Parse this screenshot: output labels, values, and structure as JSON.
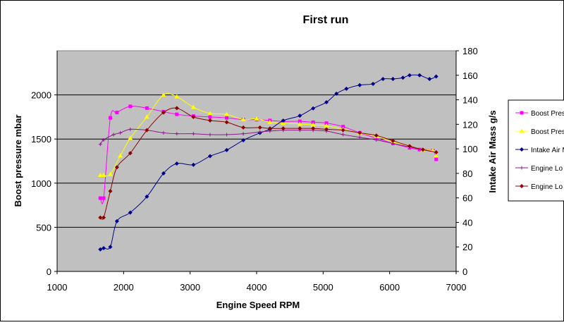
{
  "chart_data": {
    "type": "line",
    "title": "First run",
    "xlabel": "Engine Speed RPM",
    "ylabel": "Boost pressure mbar",
    "y2label": "Intake Air Mass g/s",
    "xlim": [
      1000,
      7000
    ],
    "ylim": [
      0,
      2500
    ],
    "y2lim": [
      0,
      180
    ],
    "x_ticks": [
      "1000",
      "2000",
      "3000",
      "4000",
      "5000",
      "6000",
      "7000"
    ],
    "y_ticks": [
      "0",
      "500",
      "1000",
      "1500",
      "2000"
    ],
    "y2_ticks": [
      "0",
      "20",
      "40",
      "60",
      "80",
      "100",
      "120",
      "140",
      "160",
      "180"
    ],
    "grid": true,
    "legend_position": "right",
    "plot_background": "#c0c0c0",
    "chart_background": "#ffffff",
    "series": [
      {
        "name": "Boost Pres",
        "axis": "left",
        "color": "#ff00ff",
        "marker": "square",
        "x": [
          1650,
          1700,
          1800,
          1900,
          2100,
          2350,
          2600,
          2800,
          3050,
          3300,
          3550,
          3800,
          4000,
          4200,
          4400,
          4650,
          4850,
          5050,
          5300,
          5550,
          5800,
          6050,
          6300,
          6450,
          6650,
          6700
        ],
        "y": [
          830,
          830,
          1740,
          1800,
          1870,
          1850,
          1810,
          1780,
          1760,
          1750,
          1740,
          1720,
          1720,
          1710,
          1700,
          1700,
          1690,
          1680,
          1640,
          1570,
          1510,
          1450,
          1400,
          1380,
          1370,
          1270
        ]
      },
      {
        "name": "Boost Pres",
        "axis": "left",
        "color": "#ffff00",
        "marker": "triangle",
        "x": [
          1650,
          1700,
          1800,
          1950,
          2100,
          2350,
          2600,
          2800,
          3050,
          3300,
          3550,
          3800,
          4000,
          4200,
          4400,
          4650,
          4850,
          5050,
          5300,
          5550,
          5800,
          6050,
          6300,
          6500,
          6650,
          6700
        ],
        "y": [
          1090,
          1090,
          1100,
          1310,
          1510,
          1750,
          2000,
          1980,
          1860,
          1790,
          1780,
          1720,
          1730,
          1690,
          1680,
          1670,
          1660,
          1650,
          1610,
          1570,
          1530,
          1470,
          1420,
          1380,
          1370,
          1310
        ]
      },
      {
        "name": "Intake Air M",
        "axis": "right",
        "color": "#00008b",
        "marker": "diamond",
        "x": [
          1650,
          1700,
          1800,
          1900,
          2100,
          2350,
          2600,
          2800,
          3050,
          3300,
          3550,
          3800,
          4050,
          4200,
          4400,
          4650,
          4850,
          5050,
          5200,
          5350,
          5550,
          5750,
          5900,
          6050,
          6200,
          6300,
          6450,
          6600,
          6700
        ],
        "y": [
          18,
          19,
          20,
          41,
          48,
          61,
          80,
          88,
          87,
          94,
          99,
          107,
          113,
          116,
          123,
          127,
          133,
          138,
          145,
          149,
          152,
          153,
          157,
          157,
          158,
          160,
          160,
          157,
          159
        ]
      },
      {
        "name": "Engine Lo",
        "axis": "left",
        "color": "#8b1a8b",
        "marker": "plus",
        "x": [
          1650,
          1700,
          1850,
          1950,
          2100,
          2350,
          2600,
          2800,
          3050,
          3300,
          3550,
          3800,
          4050,
          4200,
          4400,
          4650,
          4850,
          5050,
          5300,
          5550,
          5800,
          6050,
          6300,
          6500,
          6700
        ],
        "y": [
          1440,
          1490,
          1550,
          1570,
          1610,
          1600,
          1570,
          1560,
          1560,
          1550,
          1550,
          1560,
          1580,
          1590,
          1600,
          1600,
          1600,
          1590,
          1550,
          1520,
          1490,
          1450,
          1410,
          1380,
          1350
        ]
      },
      {
        "name": "Engine Lo",
        "axis": "left",
        "color": "#8b0000",
        "marker": "diamond",
        "x": [
          1650,
          1700,
          1800,
          1900,
          2100,
          2350,
          2600,
          2800,
          3050,
          3300,
          3550,
          3800,
          4050,
          4200,
          4400,
          4650,
          4850,
          5050,
          5300,
          5550,
          5800,
          6050,
          6300,
          6500,
          6700
        ],
        "y": [
          610,
          610,
          910,
          1180,
          1340,
          1600,
          1800,
          1850,
          1750,
          1710,
          1690,
          1630,
          1630,
          1620,
          1620,
          1620,
          1620,
          1610,
          1600,
          1570,
          1540,
          1480,
          1420,
          1380,
          1350
        ]
      }
    ]
  }
}
